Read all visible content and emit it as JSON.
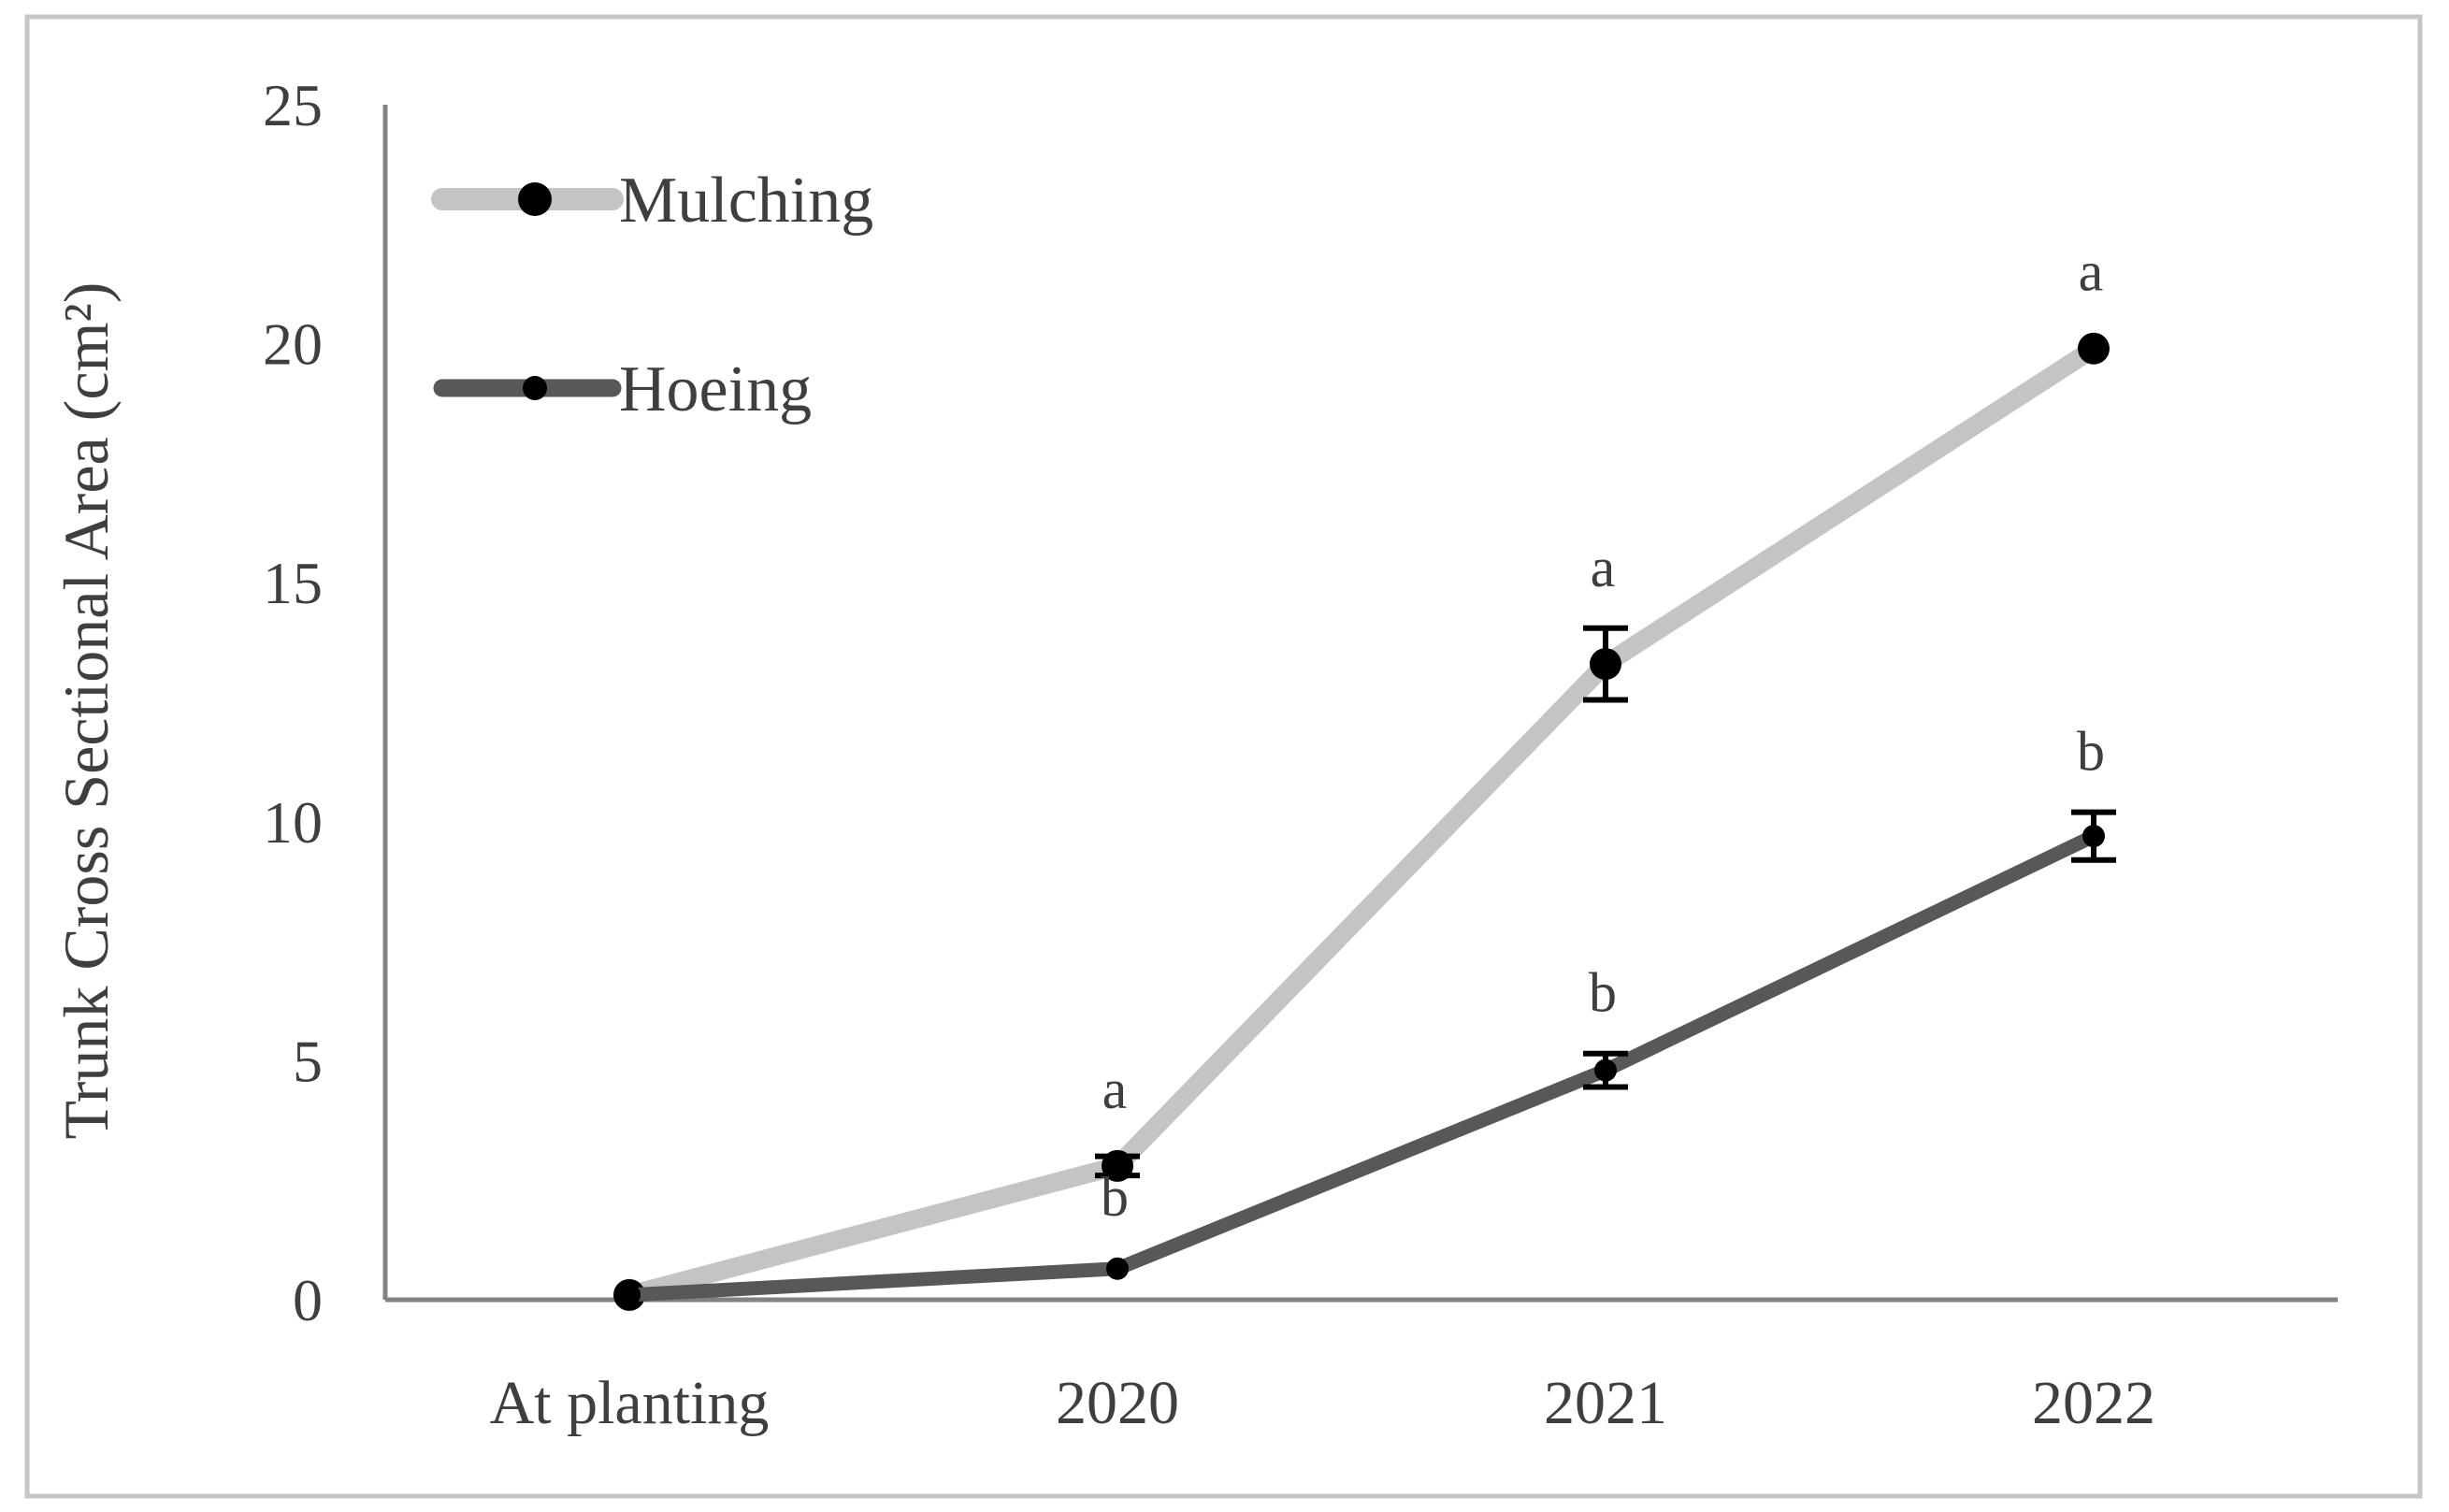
{
  "figure": {
    "background": "#ffffff",
    "border_color": "#c6c6c6"
  },
  "colors": {
    "axis": "#828282",
    "text": "#3f3f3f",
    "marker": "#000000",
    "error_bar": "#000000",
    "mulching_line": "#c4c4c4",
    "hoeing_line": "#585858"
  },
  "chart_data": {
    "type": "line",
    "title": "",
    "xlabel": "",
    "ylabel": "Trunk Cross Sectional Area (cm²)",
    "categories": [
      "At planting",
      "2020",
      "2021",
      "2022"
    ],
    "y_ticks": [
      0,
      5,
      10,
      15,
      20,
      25
    ],
    "ylim": [
      0,
      25
    ],
    "grid": false,
    "legend_position": "top-left-inside",
    "series": [
      {
        "name": "Mulching",
        "color": "#c4c4c4",
        "marker": "black-circle",
        "values": [
          0.1,
          2.8,
          13.3,
          19.9
        ],
        "errors": [
          0,
          0.2,
          0.75,
          0
        ],
        "sig_letters": [
          "",
          "a",
          "a",
          "a"
        ]
      },
      {
        "name": "Hoeing",
        "color": "#585858",
        "marker": "black-circle",
        "values": [
          0.1,
          0.65,
          4.8,
          9.7
        ],
        "errors": [
          0,
          0,
          0.35,
          0.5
        ],
        "sig_letters": [
          "",
          "b",
          "b",
          "b"
        ]
      }
    ]
  }
}
